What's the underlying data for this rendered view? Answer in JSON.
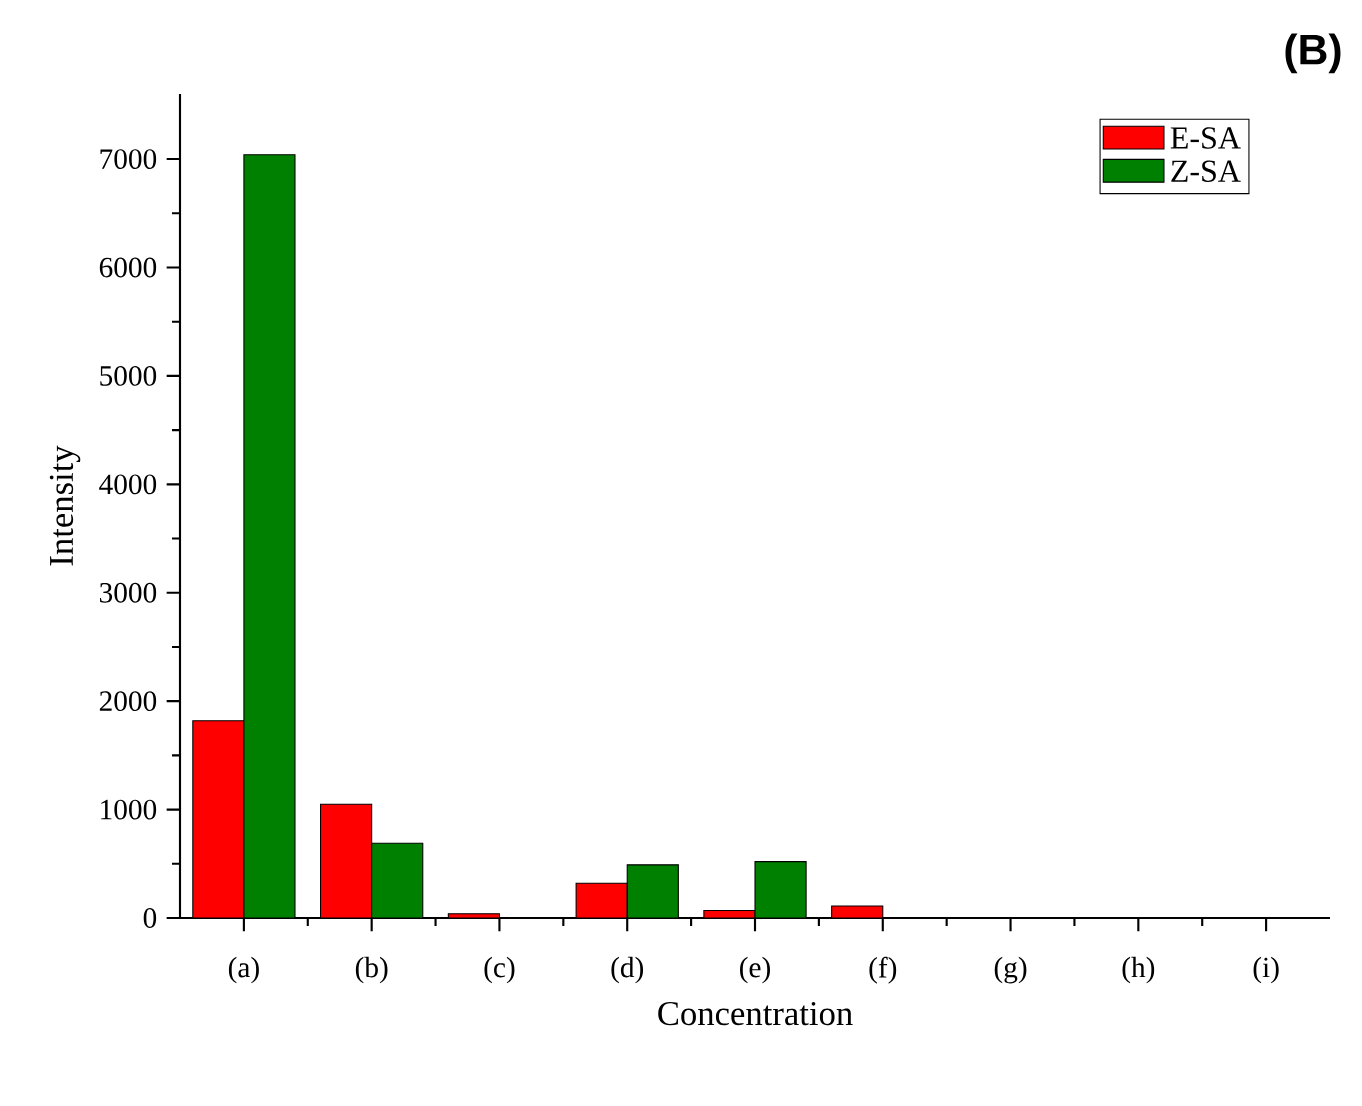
{
  "chart_data": {
    "type": "bar",
    "title": "(B)",
    "xlabel": "Concentration",
    "ylabel": "Intensity",
    "categories": [
      "(a)",
      "(b)",
      "(c)",
      "(d)",
      "(e)",
      "(f)",
      "(g)",
      "(h)",
      "(i)"
    ],
    "series": [
      {
        "name": "E-SA",
        "color": "#ff0000",
        "values": [
          1820,
          1050,
          40,
          320,
          70,
          110,
          0,
          0,
          0
        ]
      },
      {
        "name": "Z-SA",
        "color": "#008000",
        "values": [
          7040,
          690,
          0,
          490,
          520,
          0,
          0,
          0,
          0
        ]
      }
    ],
    "ylim": [
      0,
      7600
    ],
    "yticks": [
      0,
      1000,
      2000,
      3000,
      4000,
      5000,
      6000,
      7000
    ],
    "legend": "top right",
    "grid": false
  }
}
